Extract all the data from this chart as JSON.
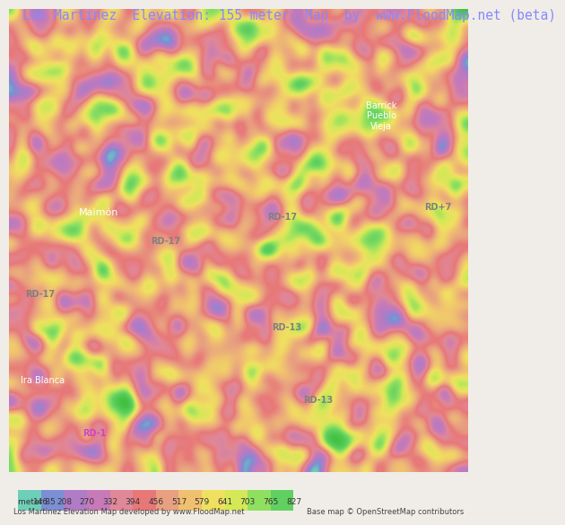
{
  "title": "Los Martinez  Elevation: 155 meter  Map  by  www.FloodMap.net (beta)",
  "title_color": "#8888ff",
  "title_fontsize": 10.5,
  "bg_color": "#f0ede8",
  "map_bg": "#c8d8f0",
  "footer_left": "Los Martinez Elevation Map developed by www.FloodMap.net",
  "footer_right": "Base map © OpenStreetMap contributors",
  "colorbar_labels": [
    "meter 85",
    "146",
    "208",
    "270",
    "332",
    "394",
    "456",
    "517",
    "579",
    "641",
    "703",
    "765",
    "827"
  ],
  "colorbar_values": [
    85,
    146,
    208,
    270,
    332,
    394,
    456,
    517,
    579,
    641,
    703,
    765,
    827
  ],
  "colorbar_colors": [
    "#6ecfb8",
    "#7b8fd4",
    "#b07cc6",
    "#c87ab8",
    "#e08898",
    "#e87878",
    "#e8a080",
    "#f0c070",
    "#f0e060",
    "#d4e858",
    "#90e060",
    "#60d060"
  ],
  "elevation_colors": [
    [
      85,
      "#6ecfb8"
    ],
    [
      146,
      "#7b8fd4"
    ],
    [
      208,
      "#b07cc6"
    ],
    [
      270,
      "#c87ab8"
    ],
    [
      332,
      "#e08898"
    ],
    [
      394,
      "#e87878"
    ],
    [
      456,
      "#e8a080"
    ],
    [
      517,
      "#f0c070"
    ],
    [
      579,
      "#f0e060"
    ],
    [
      641,
      "#d4e858"
    ],
    [
      703,
      "#90e060"
    ],
    [
      765,
      "#60d060"
    ],
    [
      827,
      "#40c040"
    ]
  ]
}
